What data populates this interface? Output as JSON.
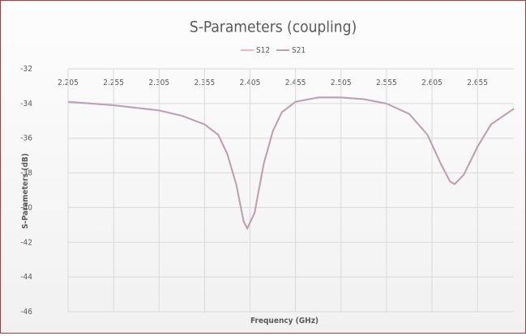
{
  "chart_data": {
    "type": "line",
    "title": "S-Parameters  (coupling)",
    "x_label": "Frequency (GHz)",
    "y_label": "S-Parameters (dB)",
    "x": [
      2.205,
      2.255,
      2.305,
      2.33,
      2.355,
      2.37,
      2.38,
      2.39,
      2.398,
      2.402,
      2.41,
      2.42,
      2.43,
      2.44,
      2.455,
      2.48,
      2.505,
      2.53,
      2.555,
      2.58,
      2.6,
      2.615,
      2.625,
      2.63,
      2.64,
      2.655,
      2.67,
      2.695
    ],
    "series": [
      {
        "name": "S12",
        "color": "#f2b8b8",
        "values": [
          -33.9,
          -34.1,
          -34.4,
          -34.7,
          -35.2,
          -35.8,
          -36.9,
          -38.7,
          -40.8,
          -41.2,
          -40.3,
          -37.5,
          -35.6,
          -34.5,
          -33.9,
          -33.65,
          -33.65,
          -33.75,
          -34.0,
          -34.6,
          -35.8,
          -37.5,
          -38.5,
          -38.65,
          -38.1,
          -36.5,
          -35.2,
          -34.3
        ]
      },
      {
        "name": "S21",
        "color": "#b9a3b3",
        "values": [
          -33.9,
          -34.1,
          -34.4,
          -34.7,
          -35.2,
          -35.8,
          -36.9,
          -38.7,
          -40.8,
          -41.2,
          -40.3,
          -37.5,
          -35.6,
          -34.5,
          -33.9,
          -33.65,
          -33.65,
          -33.75,
          -34.0,
          -34.6,
          -35.8,
          -37.5,
          -38.5,
          -38.65,
          -38.1,
          -36.5,
          -35.2,
          -34.3
        ]
      }
    ],
    "xlim": [
      2.205,
      2.695
    ],
    "xticks": [
      2.205,
      2.255,
      2.305,
      2.355,
      2.405,
      2.455,
      2.505,
      2.555,
      2.605,
      2.655
    ],
    "ylim": [
      -46,
      -32
    ],
    "yticks": [
      -32,
      -34,
      -36,
      -38,
      -40,
      -42,
      -44,
      -46
    ],
    "grid": true,
    "legend": "top"
  }
}
